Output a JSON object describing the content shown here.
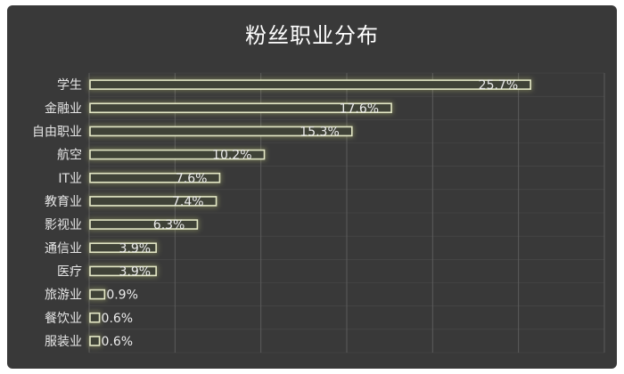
{
  "chart_data": {
    "type": "bar",
    "orientation": "horizontal",
    "title": "粉丝职业分布",
    "categories": [
      "学生",
      "金融业",
      "自由职业",
      "航空",
      "IT业",
      "教育业",
      "影视业",
      "通信业",
      "医疗",
      "旅游业",
      "餐饮业",
      "服装业"
    ],
    "values": [
      25.7,
      17.6,
      15.3,
      10.2,
      7.6,
      7.4,
      6.3,
      3.9,
      3.9,
      0.9,
      0.6,
      0.6
    ],
    "value_labels": [
      "25.7%",
      "17.6%",
      "15.3%",
      "10.2%",
      "7.6%",
      "7.4%",
      "6.3%",
      "3.9%",
      "3.9%",
      "0.9%",
      "0.6%",
      "0.6%"
    ],
    "xlim": [
      0,
      30
    ],
    "grid": true,
    "legend": "none",
    "colors": {
      "background": "#393939",
      "bar_fill": "#3f4237",
      "bar_stroke": "#e4e8c6",
      "bar_glow": "#c9d07a",
      "grid": "#5c5c5c",
      "text": "#e6e6e6"
    }
  }
}
